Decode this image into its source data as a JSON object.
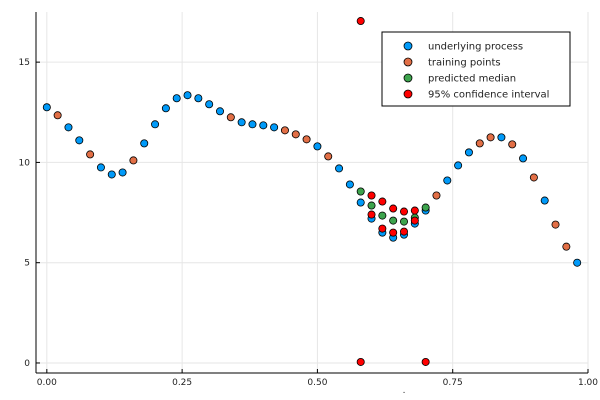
{
  "chart_data": {
    "type": "scatter",
    "xlim": [
      -0.02,
      1.0
    ],
    "ylim": [
      -0.5,
      17.5
    ],
    "xticks": [
      0.0,
      0.25,
      0.5,
      0.75,
      1.0
    ],
    "xtick_labels": [
      "0.00",
      "0.25",
      "0.50",
      "0.75",
      "1.00"
    ],
    "yticks": [
      0,
      5,
      10,
      15
    ],
    "ytick_labels": [
      "0",
      "5",
      "10",
      "15"
    ],
    "xlabel": ".",
    "grid": true,
    "legend_position": "top-right",
    "series": [
      {
        "name": "underlying process",
        "color": "#009af9",
        "points": [
          [
            0.0,
            12.75
          ],
          [
            0.04,
            11.75
          ],
          [
            0.06,
            11.1
          ],
          [
            0.1,
            9.75
          ],
          [
            0.12,
            9.4
          ],
          [
            0.14,
            9.5
          ],
          [
            0.18,
            10.95
          ],
          [
            0.2,
            11.9
          ],
          [
            0.22,
            12.7
          ],
          [
            0.24,
            13.2
          ],
          [
            0.26,
            13.35
          ],
          [
            0.28,
            13.2
          ],
          [
            0.3,
            12.9
          ],
          [
            0.32,
            12.55
          ],
          [
            0.36,
            12.0
          ],
          [
            0.38,
            11.9
          ],
          [
            0.4,
            11.85
          ],
          [
            0.42,
            11.75
          ],
          [
            0.5,
            10.8
          ],
          [
            0.54,
            9.7
          ],
          [
            0.56,
            8.9
          ],
          [
            0.58,
            8.0
          ],
          [
            0.6,
            7.2
          ],
          [
            0.62,
            6.5
          ],
          [
            0.64,
            6.25
          ],
          [
            0.66,
            6.4
          ],
          [
            0.68,
            6.95
          ],
          [
            0.7,
            7.6
          ],
          [
            0.74,
            9.1
          ],
          [
            0.76,
            9.85
          ],
          [
            0.78,
            10.5
          ],
          [
            0.84,
            11.25
          ],
          [
            0.88,
            10.2
          ],
          [
            0.92,
            8.1
          ],
          [
            0.98,
            5.0
          ]
        ]
      },
      {
        "name": "training points",
        "color": "#e26f46",
        "points": [
          [
            0.02,
            12.35
          ],
          [
            0.08,
            10.4
          ],
          [
            0.16,
            10.1
          ],
          [
            0.34,
            12.25
          ],
          [
            0.44,
            11.6
          ],
          [
            0.46,
            11.4
          ],
          [
            0.48,
            11.15
          ],
          [
            0.52,
            10.3
          ],
          [
            0.72,
            8.35
          ],
          [
            0.8,
            10.95
          ],
          [
            0.82,
            11.25
          ],
          [
            0.86,
            10.9
          ],
          [
            0.9,
            9.25
          ],
          [
            0.94,
            6.9
          ],
          [
            0.96,
            5.8
          ]
        ]
      },
      {
        "name": "predicted median",
        "color": "#3da44d",
        "points": [
          [
            0.58,
            8.55
          ],
          [
            0.6,
            7.85
          ],
          [
            0.62,
            7.35
          ],
          [
            0.64,
            7.1
          ],
          [
            0.66,
            7.05
          ],
          [
            0.68,
            7.25
          ],
          [
            0.7,
            7.75
          ]
        ]
      },
      {
        "name": "95% confidence interval",
        "color": "#ff0000",
        "points": [
          [
            0.58,
            17.05
          ],
          [
            0.58,
            0.05
          ],
          [
            0.6,
            8.35
          ],
          [
            0.6,
            7.4
          ],
          [
            0.62,
            8.05
          ],
          [
            0.62,
            6.7
          ],
          [
            0.64,
            7.7
          ],
          [
            0.64,
            6.5
          ],
          [
            0.66,
            7.55
          ],
          [
            0.66,
            6.55
          ],
          [
            0.68,
            7.6
          ],
          [
            0.68,
            7.1
          ],
          [
            0.7,
            0.05
          ]
        ]
      }
    ]
  }
}
